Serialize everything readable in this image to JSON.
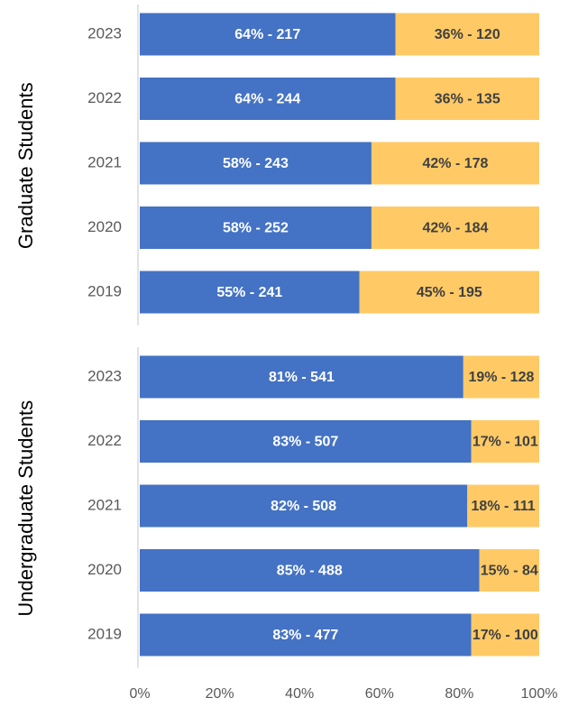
{
  "chart_data": [
    {
      "type": "bar",
      "orientation": "horizontal",
      "stacked": true,
      "ylabel": "Graduate Students",
      "categories": [
        "2023",
        "2022",
        "2021",
        "2020",
        "2019"
      ],
      "series": [
        {
          "color": "#4472c4",
          "values": [
            64,
            64,
            58,
            58,
            55
          ],
          "value_labels": [
            "64% - 217",
            "64% - 244",
            "58% - 243",
            "58% - 252",
            "55% - 241"
          ]
        },
        {
          "color": "#ffca66",
          "values": [
            36,
            36,
            42,
            42,
            45
          ],
          "value_labels": [
            "36% - 120",
            "36% - 135",
            "42% - 178",
            "42% - 184",
            "45% - 195"
          ]
        }
      ],
      "xlim": [
        0,
        100
      ]
    },
    {
      "type": "bar",
      "orientation": "horizontal",
      "stacked": true,
      "ylabel": "Undergraduate Students",
      "categories": [
        "2023",
        "2022",
        "2021",
        "2020",
        "2019"
      ],
      "series": [
        {
          "color": "#4472c4",
          "values": [
            81,
            83,
            82,
            85,
            83
          ],
          "value_labels": [
            "81% - 541",
            "83% - 507",
            "82% - 508",
            "85% - 488",
            "83% - 477"
          ]
        },
        {
          "color": "#ffca66",
          "values": [
            19,
            17,
            18,
            15,
            17
          ],
          "value_labels": [
            "19% - 128",
            "17% - 101",
            "18% - 111",
            "15% - 84",
            "17% - 100"
          ]
        }
      ],
      "xlim": [
        0,
        100
      ],
      "xticks": [
        {
          "value": 0,
          "label": "0%"
        },
        {
          "value": 20,
          "label": "20%"
        },
        {
          "value": 40,
          "label": "40%"
        },
        {
          "value": 60,
          "label": "60%"
        },
        {
          "value": 80,
          "label": "80%"
        },
        {
          "value": 100,
          "label": "100%"
        }
      ]
    }
  ]
}
